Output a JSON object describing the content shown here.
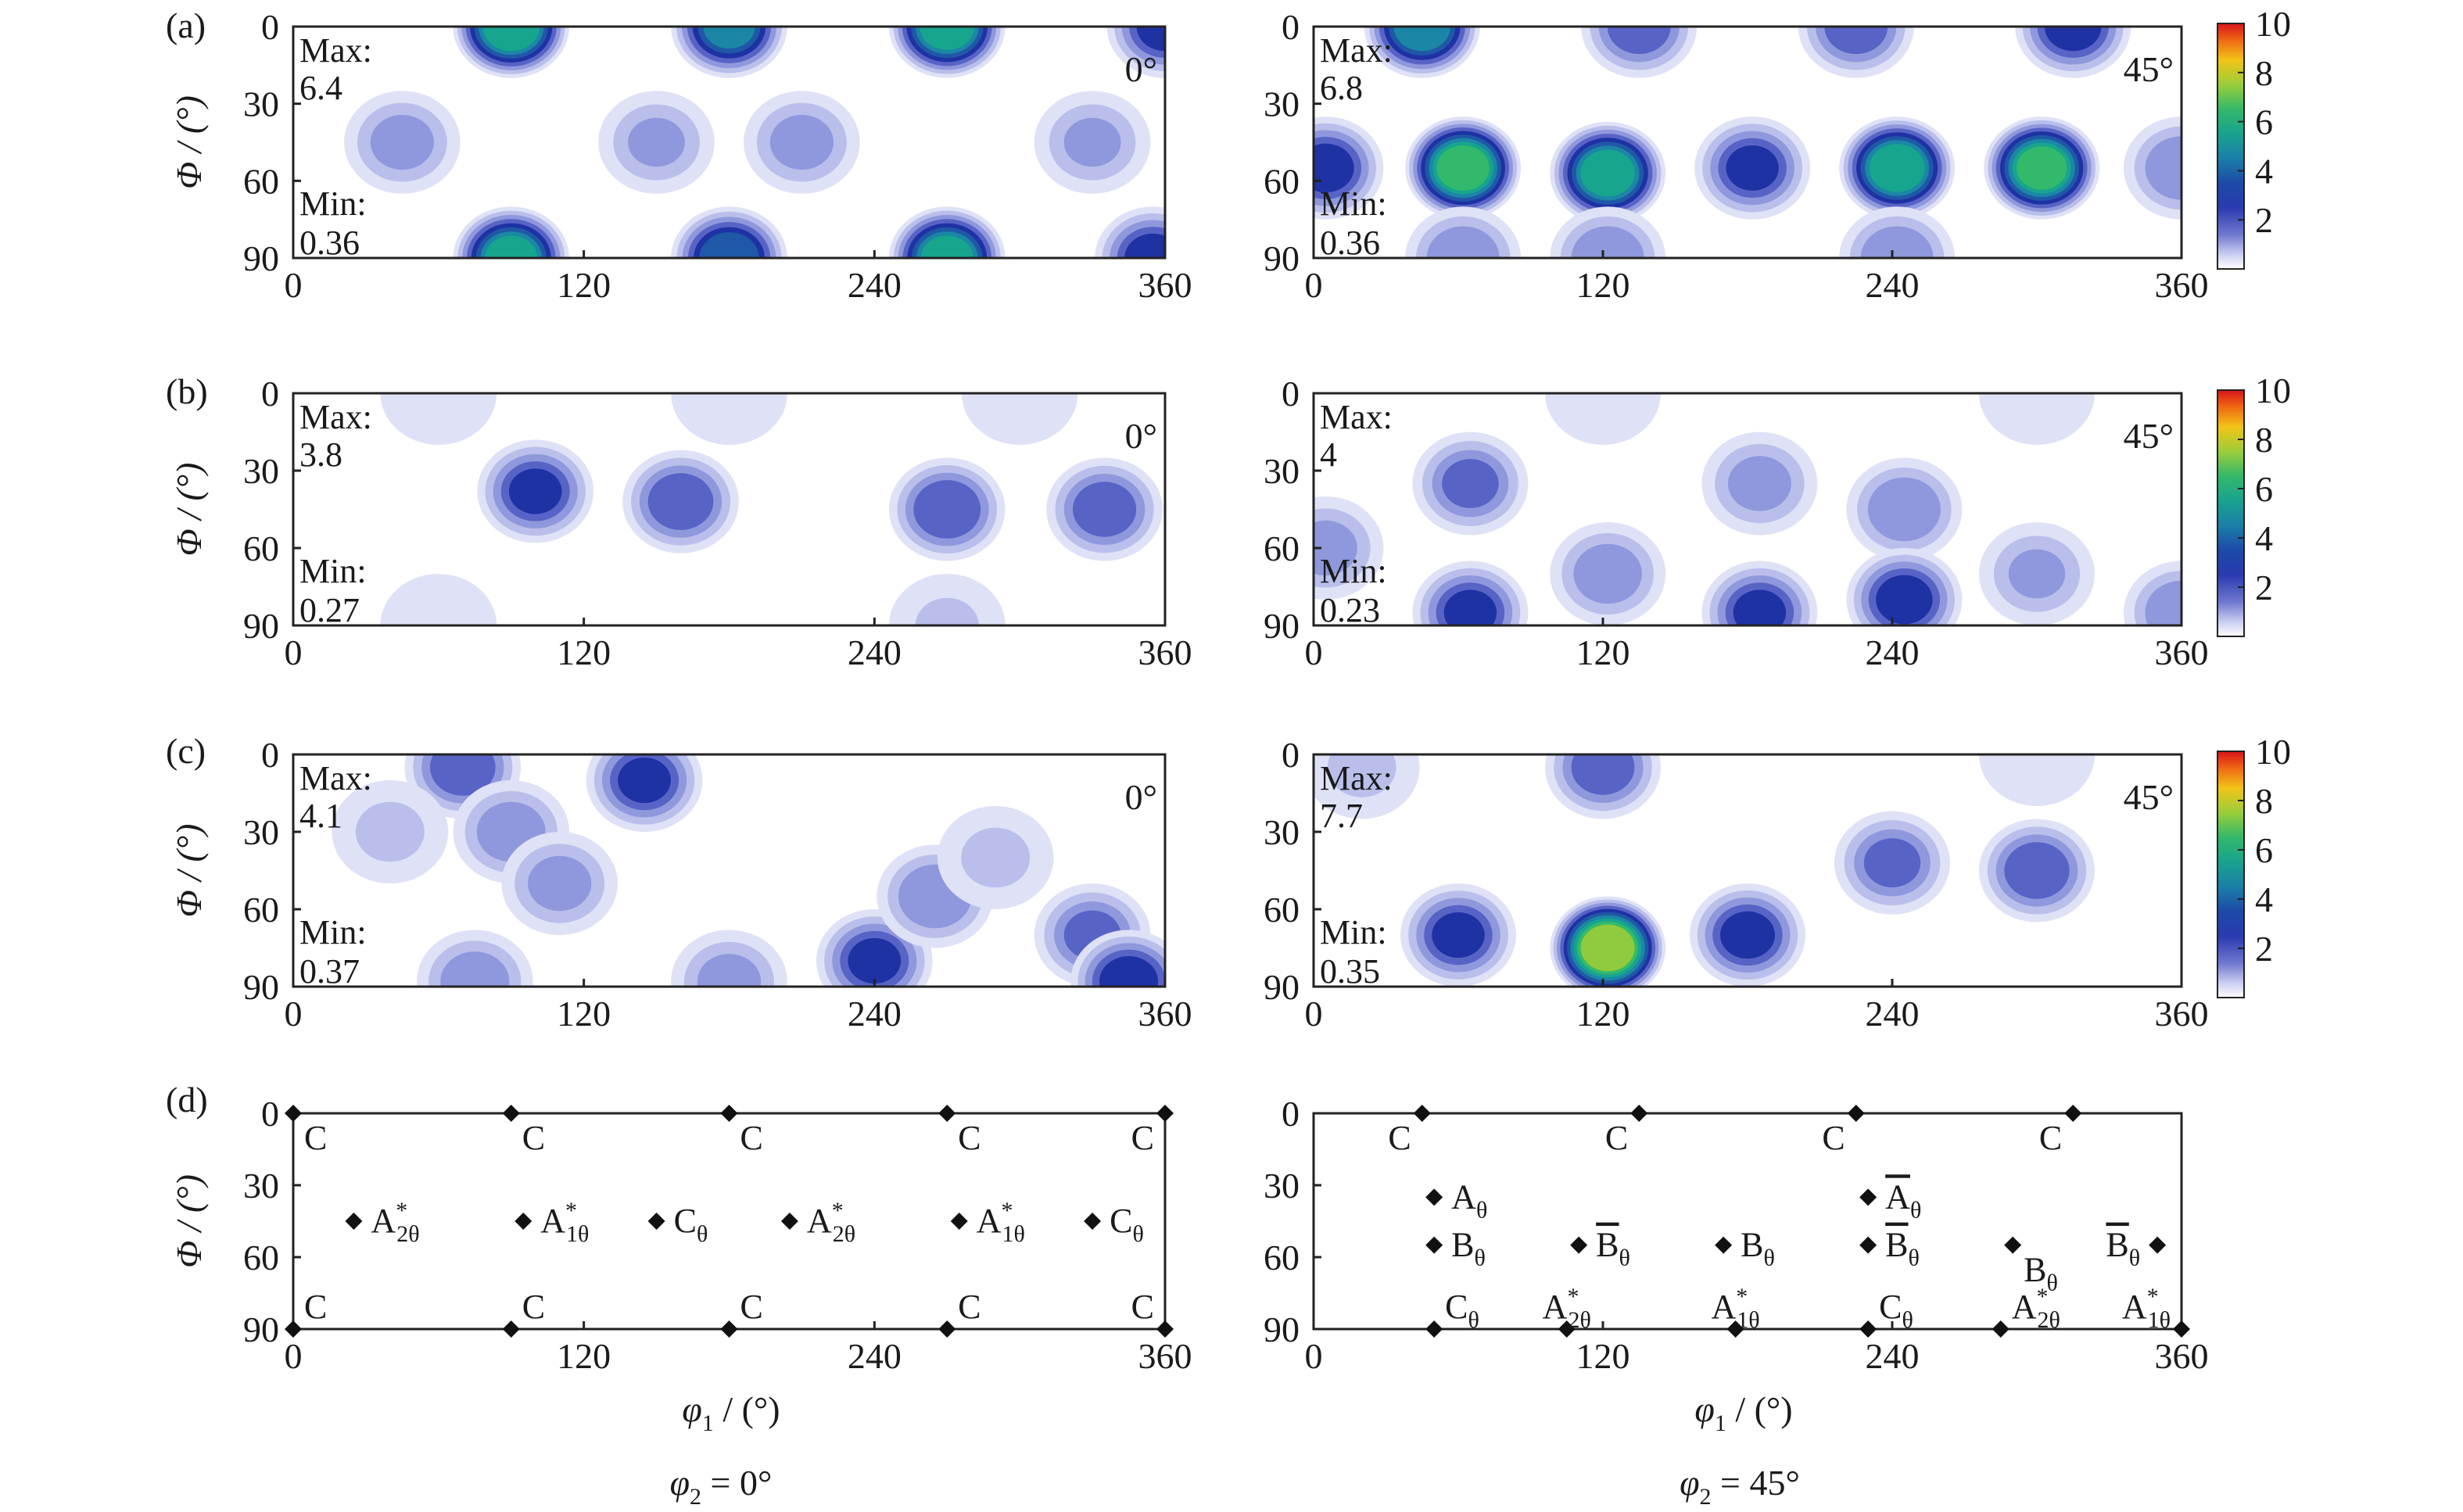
{
  "figure": {
    "col_captions": [
      "φ2 = 0°",
      "φ2 = 45°"
    ],
    "xlabel": "φ1 / (°)",
    "ylabel": "Φ / (°)",
    "x_ticks": [
      "0",
      "120",
      "240",
      "360"
    ],
    "y_ticks": [
      "0",
      "30",
      "60",
      "90"
    ],
    "colorbar_ticks": [
      "10",
      "8",
      "6",
      "4",
      "2"
    ]
  },
  "chart_data": [
    {
      "type": "heatmap",
      "panel": "(a)",
      "corner_label": "0°",
      "max_label": "Max:",
      "max_value": "6.4",
      "min_label": "Min:",
      "min_value": "0.36",
      "xlim": [
        0,
        360
      ],
      "ylim": [
        0,
        90
      ],
      "peaks": [
        [
          90,
          0,
          6.4
        ],
        [
          180,
          0,
          5.2
        ],
        [
          270,
          0,
          6.2
        ],
        [
          360,
          0,
          4.0
        ],
        [
          90,
          90,
          6.0
        ],
        [
          180,
          90,
          5.0
        ],
        [
          270,
          90,
          6.0
        ],
        [
          355,
          90,
          4.0
        ],
        [
          45,
          45,
          2.6
        ],
        [
          150,
          45,
          2.4
        ],
        [
          210,
          45,
          2.6
        ],
        [
          330,
          45,
          2.4
        ]
      ]
    },
    {
      "type": "heatmap",
      "panel": "(a)",
      "corner_label": "45°",
      "max_label": "Max:",
      "max_value": "6.8",
      "min_label": "Min:",
      "min_value": "0.36",
      "xlim": [
        0,
        360
      ],
      "ylim": [
        0,
        90
      ],
      "peaks": [
        [
          45,
          0,
          5.6
        ],
        [
          135,
          0,
          3.5
        ],
        [
          225,
          0,
          3.5
        ],
        [
          315,
          0,
          4.0
        ],
        [
          62,
          55,
          6.8
        ],
        [
          122,
          57,
          6.2
        ],
        [
          182,
          55,
          3.8
        ],
        [
          242,
          55,
          6.3
        ],
        [
          302,
          55,
          6.6
        ],
        [
          5,
          55,
          4.0
        ],
        [
          360,
          55,
          3.0
        ],
        [
          62,
          90,
          3.0
        ],
        [
          122,
          90,
          3.0
        ],
        [
          242,
          90,
          3.0
        ]
      ]
    },
    {
      "type": "heatmap",
      "panel": "(b)",
      "corner_label": "0°",
      "max_label": "Max:",
      "max_value": "3.8",
      "min_label": "Min:",
      "min_value": "0.27",
      "xlim": [
        0,
        360
      ],
      "ylim": [
        0,
        90
      ],
      "peaks": [
        [
          100,
          38,
          3.8
        ],
        [
          160,
          42,
          3.6
        ],
        [
          270,
          45,
          3.7
        ],
        [
          335,
          45,
          3.5
        ],
        [
          60,
          0,
          1.6
        ],
        [
          180,
          0,
          1.5
        ],
        [
          300,
          0,
          1.5
        ],
        [
          60,
          90,
          1.6
        ],
        [
          270,
          90,
          1.7
        ]
      ]
    },
    {
      "type": "heatmap",
      "panel": "(b)",
      "corner_label": "45°",
      "max_label": "Max:",
      "max_value": "4",
      "min_label": "Min:",
      "min_value": "0.23",
      "xlim": [
        0,
        360
      ],
      "ylim": [
        0,
        90
      ],
      "peaks": [
        [
          65,
          35,
          3.2
        ],
        [
          185,
          35,
          2.6
        ],
        [
          245,
          45,
          3.0
        ],
        [
          122,
          70,
          2.8
        ],
        [
          300,
          70,
          2.4
        ],
        [
          5,
          60,
          2.6
        ],
        [
          65,
          85,
          3.8
        ],
        [
          185,
          85,
          3.8
        ],
        [
          245,
          80,
          4.0
        ],
        [
          360,
          85,
          3.0
        ],
        [
          120,
          0,
          1.5
        ],
        [
          300,
          0,
          1.5
        ]
      ]
    },
    {
      "type": "heatmap",
      "panel": "(c)",
      "corner_label": "0°",
      "max_label": "Max:",
      "max_value": "4.1",
      "min_label": "Min:",
      "min_value": "0.37",
      "xlim": [
        0,
        360
      ],
      "ylim": [
        0,
        90
      ],
      "peaks": [
        [
          70,
          5,
          3.6
        ],
        [
          145,
          10,
          3.8
        ],
        [
          90,
          30,
          2.8
        ],
        [
          110,
          50,
          2.6
        ],
        [
          40,
          30,
          1.8
        ],
        [
          240,
          80,
          3.8
        ],
        [
          265,
          55,
          3.0
        ],
        [
          330,
          70,
          3.2
        ],
        [
          345,
          88,
          4.1
        ],
        [
          180,
          88,
          2.6
        ],
        [
          75,
          88,
          2.8
        ],
        [
          290,
          40,
          1.8
        ]
      ]
    },
    {
      "type": "heatmap",
      "panel": "(c)",
      "corner_label": "45°",
      "max_label": "Max:",
      "max_value": "7.7",
      "min_label": "Min:",
      "min_value": "0.35",
      "xlim": [
        0,
        360
      ],
      "ylim": [
        0,
        90
      ],
      "peaks": [
        [
          122,
          75,
          7.7
        ],
        [
          60,
          70,
          3.8
        ],
        [
          180,
          70,
          3.9
        ],
        [
          240,
          42,
          3.2
        ],
        [
          300,
          45,
          3.6
        ],
        [
          120,
          5,
          3.5
        ],
        [
          20,
          5,
          1.8
        ],
        [
          300,
          0,
          1.6
        ]
      ]
    }
  ],
  "markers": {
    "panel": "(d)",
    "left": [
      {
        "x": 0,
        "y": 0,
        "lbl": "C",
        "sup": "",
        "sub": "",
        "bar": false,
        "pos": "br"
      },
      {
        "x": 90,
        "y": 0,
        "lbl": "C",
        "sup": "",
        "sub": "",
        "bar": false,
        "pos": "br"
      },
      {
        "x": 180,
        "y": 0,
        "lbl": "C",
        "sup": "",
        "sub": "",
        "bar": false,
        "pos": "br"
      },
      {
        "x": 270,
        "y": 0,
        "lbl": "C",
        "sup": "",
        "sub": "",
        "bar": false,
        "pos": "br"
      },
      {
        "x": 360,
        "y": 0,
        "lbl": "C",
        "sup": "",
        "sub": "",
        "bar": false,
        "pos": "bl"
      },
      {
        "x": 0,
        "y": 90,
        "lbl": "C",
        "sup": "",
        "sub": "",
        "bar": false,
        "pos": "tr"
      },
      {
        "x": 90,
        "y": 90,
        "lbl": "C",
        "sup": "",
        "sub": "",
        "bar": false,
        "pos": "tr"
      },
      {
        "x": 180,
        "y": 90,
        "lbl": "C",
        "sup": "",
        "sub": "",
        "bar": false,
        "pos": "tr"
      },
      {
        "x": 270,
        "y": 90,
        "lbl": "C",
        "sup": "",
        "sub": "",
        "bar": false,
        "pos": "tr"
      },
      {
        "x": 360,
        "y": 90,
        "lbl": "C",
        "sup": "",
        "sub": "",
        "bar": false,
        "pos": "tl"
      },
      {
        "x": 25,
        "y": 45,
        "lbl": "A",
        "sup": "*",
        "sub": "2θ",
        "bar": false,
        "pos": "r"
      },
      {
        "x": 95,
        "y": 45,
        "lbl": "A",
        "sup": "*",
        "sub": "1θ",
        "bar": false,
        "pos": "r"
      },
      {
        "x": 150,
        "y": 45,
        "lbl": "C",
        "sup": "",
        "sub": "θ",
        "bar": false,
        "pos": "r"
      },
      {
        "x": 205,
        "y": 45,
        "lbl": "A",
        "sup": "*",
        "sub": "2θ",
        "bar": false,
        "pos": "r"
      },
      {
        "x": 275,
        "y": 45,
        "lbl": "A",
        "sup": "*",
        "sub": "1θ",
        "bar": false,
        "pos": "r"
      },
      {
        "x": 330,
        "y": 45,
        "lbl": "C",
        "sup": "",
        "sub": "θ",
        "bar": false,
        "pos": "r"
      }
    ],
    "right": [
      {
        "x": 45,
        "y": 0,
        "lbl": "C",
        "sup": "",
        "sub": "",
        "bar": false,
        "pos": "bl"
      },
      {
        "x": 135,
        "y": 0,
        "lbl": "C",
        "sup": "",
        "sub": "",
        "bar": false,
        "pos": "bl"
      },
      {
        "x": 225,
        "y": 0,
        "lbl": "C",
        "sup": "",
        "sub": "",
        "bar": false,
        "pos": "bl"
      },
      {
        "x": 315,
        "y": 0,
        "lbl": "C",
        "sup": "",
        "sub": "",
        "bar": false,
        "pos": "bl"
      },
      {
        "x": 50,
        "y": 35,
        "lbl": "A",
        "sup": "",
        "sub": "θ",
        "bar": false,
        "pos": "r"
      },
      {
        "x": 230,
        "y": 35,
        "lbl": "A",
        "sup": "",
        "sub": "θ",
        "bar": true,
        "pos": "r"
      },
      {
        "x": 50,
        "y": 55,
        "lbl": "B",
        "sup": "",
        "sub": "θ",
        "bar": false,
        "pos": "r"
      },
      {
        "x": 110,
        "y": 55,
        "lbl": "B",
        "sup": "",
        "sub": "θ",
        "bar": true,
        "pos": "r"
      },
      {
        "x": 170,
        "y": 55,
        "lbl": "B",
        "sup": "",
        "sub": "θ",
        "bar": false,
        "pos": "r"
      },
      {
        "x": 230,
        "y": 55,
        "lbl": "B",
        "sup": "",
        "sub": "θ",
        "bar": true,
        "pos": "r"
      },
      {
        "x": 290,
        "y": 55,
        "lbl": "B",
        "sup": "",
        "sub": "θ",
        "bar": false,
        "pos": "br"
      },
      {
        "x": 350,
        "y": 55,
        "lbl": "B",
        "sup": "",
        "sub": "θ",
        "bar": true,
        "pos": "l"
      },
      {
        "x": 50,
        "y": 90,
        "lbl": "C",
        "sup": "",
        "sub": "θ",
        "bar": false,
        "pos": "tr"
      },
      {
        "x": 105,
        "y": 90,
        "lbl": "A",
        "sup": "*",
        "sub": "2θ",
        "bar": false,
        "pos": "t"
      },
      {
        "x": 175,
        "y": 90,
        "lbl": "A",
        "sup": "*",
        "sub": "1θ",
        "bar": false,
        "pos": "t"
      },
      {
        "x": 230,
        "y": 90,
        "lbl": "C",
        "sup": "",
        "sub": "θ",
        "bar": false,
        "pos": "tr"
      },
      {
        "x": 285,
        "y": 90,
        "lbl": "A",
        "sup": "*",
        "sub": "2θ",
        "bar": false,
        "pos": "tr"
      },
      {
        "x": 360,
        "y": 90,
        "lbl": "A",
        "sup": "*",
        "sub": "1θ",
        "bar": false,
        "pos": "tl"
      }
    ]
  }
}
